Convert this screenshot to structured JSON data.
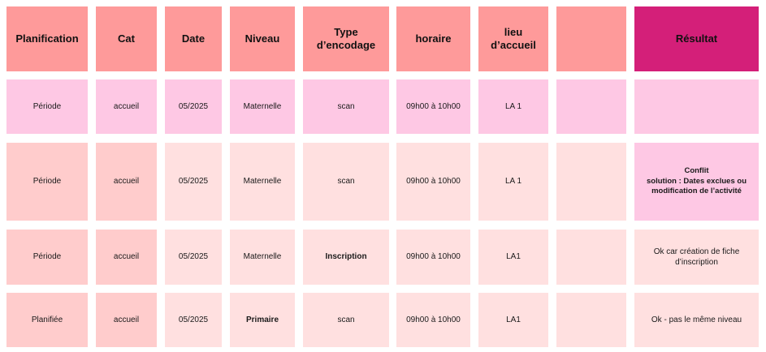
{
  "header": {
    "planification": "Planification",
    "cat": "Cat",
    "date": "Date",
    "niveau": "Niveau",
    "type_line1": "Type",
    "type_line2": "d’encodage",
    "horaire": "horaire",
    "lieu_line1": "lieu",
    "lieu_line2": "d’accueil",
    "blank": "",
    "resultat": "Résultat"
  },
  "rows": [
    {
      "planification": "Période",
      "cat": "accueil",
      "date": "05/2025",
      "niveau": "Maternelle",
      "type": "scan",
      "horaire": "09h00 à 10h00",
      "lieu": "LA 1",
      "blank": "",
      "resultat_lines": [
        "",
        "",
        ""
      ]
    },
    {
      "planification": "Période",
      "cat": "accueil",
      "date": "05/2025",
      "niveau": "Maternelle",
      "type": "scan",
      "horaire": "09h00 à 10h00",
      "lieu": "LA 1",
      "blank": "",
      "resultat_lines": [
        "Conflit",
        "solution : Dates exclues ou",
        "modification de l’activité"
      ]
    },
    {
      "planification": "Période",
      "cat": "accueil",
      "date": "05/2025",
      "niveau": "Maternelle",
      "type": "Inscription",
      "horaire": "09h00 à 10h00",
      "lieu": "LA1",
      "blank": "",
      "resultat_lines": [
        "Ok car création de fiche",
        "d’inscription",
        ""
      ]
    },
    {
      "planification": "Planifiée",
      "cat": "accueil",
      "date": "05/2025",
      "niveau": "Primaire",
      "type": "scan",
      "horaire": "09h00 à 10h00",
      "lieu": "LA1",
      "blank": "",
      "resultat_lines": [
        "Ok - pas le même niveau",
        "",
        ""
      ]
    }
  ],
  "colors": {
    "header": "#fe9a9a",
    "header_result": "#d41f79",
    "pink": "#fec8e4",
    "peach": "#ffcccc",
    "light": "#ffe0e0"
  }
}
